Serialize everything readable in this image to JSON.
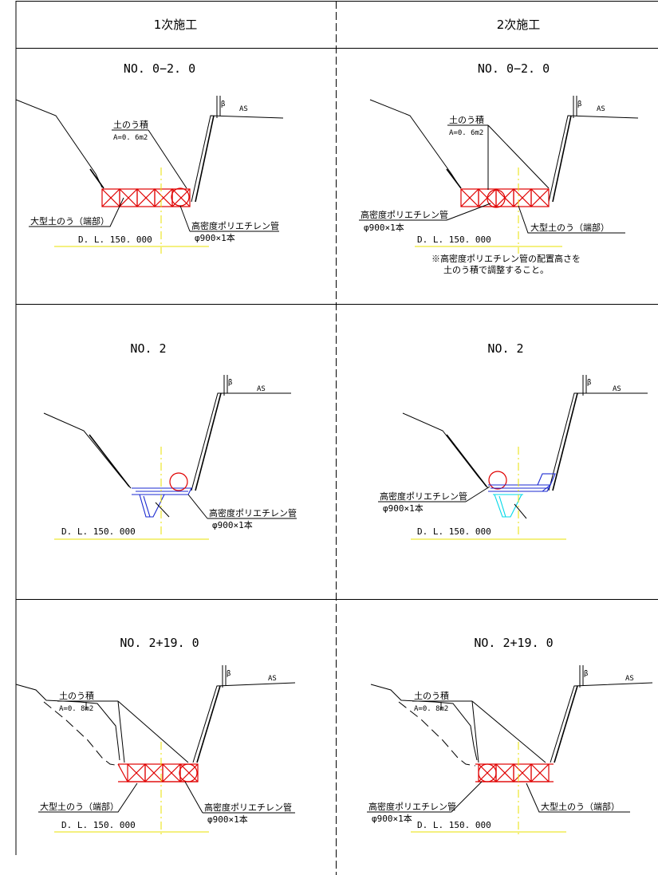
{
  "headers": {
    "left": "1次施工",
    "right": "2次施工"
  },
  "rows": [
    {
      "left": {
        "section": "NO. 0−2. 0"
      },
      "right": {
        "section": "NO. 0−2. 0"
      }
    },
    {
      "left": {
        "section": "NO. 2"
      },
      "right": {
        "section": "NO. 2"
      }
    },
    {
      "left": {
        "section": "NO. 2+19. 0"
      },
      "right": {
        "section": "NO. 2+19. 0"
      }
    }
  ],
  "labels": {
    "sandbag_stack": "土のう積",
    "area_06": "A=0. 6m2",
    "area_08": "A=0. 8m2",
    "large_sandbag": "大型土のう（端部）",
    "hdpe_pipe": "高密度ポリエチレン管",
    "pipe_spec": "φ900×1本",
    "datum": "D. L. 150. 000",
    "road": "AS",
    "fence": "β",
    "note_line1": "※高密度ポリエチレン管の配置高さを",
    "note_line2": "土のう積で調整すること。"
  },
  "colors": {
    "sandbag": "#e00000",
    "formwork": "#1a28d0",
    "formwork_2nd": "#00d8e8",
    "datum_line": "#e8e000",
    "ink": "#000000"
  }
}
